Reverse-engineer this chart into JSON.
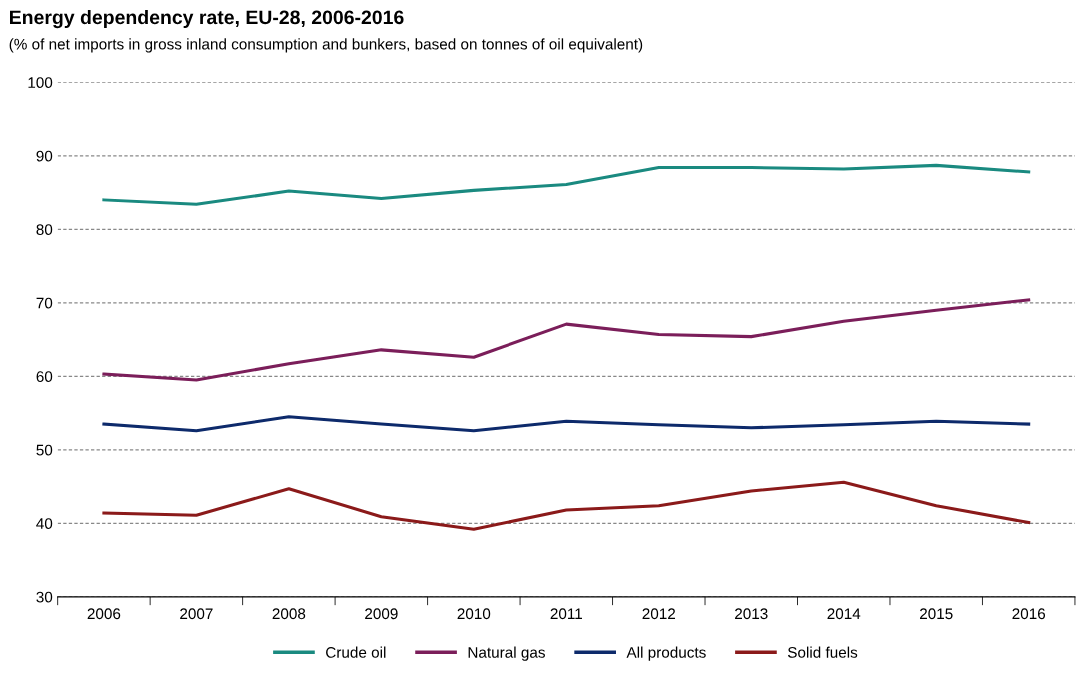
{
  "chart_data": {
    "type": "line",
    "title": "Energy dependency rate, EU-28, 2006-2016",
    "subtitle": "(% of net imports in gross inland consumption and bunkers, based on tonnes of oil equivalent)",
    "categories": [
      "2006",
      "2007",
      "2008",
      "2009",
      "2010",
      "2011",
      "2012",
      "2013",
      "2014",
      "2015",
      "2016"
    ],
    "series": [
      {
        "name": "Crude oil",
        "color": "#1a8a80",
        "values": [
          84.0,
          83.4,
          85.2,
          84.2,
          85.3,
          86.1,
          88.4,
          88.4,
          88.2,
          88.7,
          87.8
        ]
      },
      {
        "name": "Natural gas",
        "color": "#7b1e5a",
        "values": [
          60.3,
          59.5,
          61.7,
          63.6,
          62.6,
          67.1,
          65.7,
          65.4,
          67.5,
          69.0,
          70.4
        ]
      },
      {
        "name": "All products",
        "color": "#0d2a6b",
        "values": [
          53.5,
          52.6,
          54.5,
          53.5,
          52.6,
          53.9,
          53.4,
          53.0,
          53.4,
          53.9,
          53.5
        ]
      },
      {
        "name": "Solid fuels",
        "color": "#8b1a1a",
        "values": [
          41.4,
          41.1,
          44.7,
          40.9,
          39.2,
          41.8,
          42.4,
          44.4,
          45.6,
          42.4,
          40.1
        ]
      }
    ],
    "ylim": [
      30,
      100
    ],
    "yticks": [
      30,
      40,
      50,
      60,
      70,
      80,
      90,
      100
    ],
    "grid": "y",
    "legend": "bottom",
    "marker": "none",
    "line_style": "solid"
  }
}
